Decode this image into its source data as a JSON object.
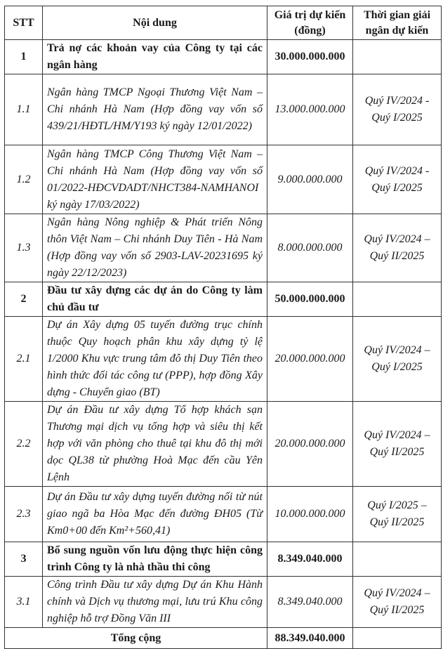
{
  "headers": {
    "stt": "STT",
    "content": "Nội dung",
    "value": "Giá trị dự kiến (đồng)",
    "time": "Thời gian giải ngân dự kiến"
  },
  "rows": [
    {
      "stt": "1",
      "content": "Trả nợ các khoản vay của Công ty tại các ngân hàng",
      "value": "30.000.000.000",
      "time": ""
    },
    {
      "stt": "1.1",
      "content": "Ngân hàng TMCP Ngoại Thương Việt Nam – Chi nhánh Hà Nam (Hợp đồng vay vốn số 439/21/HĐTL/HM/Y193 ký ngày 12/01/2022)",
      "value": "13.000.000.000",
      "time": "Quý IV/2024 - Quý I/2025"
    },
    {
      "stt": "1.2",
      "content": "Ngân hàng TMCP Công Thương Việt Nam – Chi nhánh Hà Nam (Hợp đồng vay vốn số 01/2022-HĐCVDADT/NHCT384-NAMHANOI ký ngày 17/03/2022)",
      "value": "9.000.000.000",
      "time": "Quý IV/2024 - Quý I/2025"
    },
    {
      "stt": "1.3",
      "content": "Ngân hàng Nông nghiệp & Phát triển Nông thôn Việt Nam – Chi nhánh Duy Tiên - Hà Nam (Hợp đồng vay vốn số 2903-LAV-20231695 ký ngày 22/12/2023)",
      "value": "8.000.000.000",
      "time": "Quý IV/2024 – Quý II/2025"
    },
    {
      "stt": "2",
      "content": "Đầu tư xây dựng các dự án do Công ty làm chủ đầu tư",
      "value": "50.000.000.000",
      "time": ""
    },
    {
      "stt": "2.1",
      "content": "Dự án Xây dựng 05 tuyến đường trục chính thuộc Quy hoạch phân khu xây dựng tỷ lệ 1/2000 Khu vực trung tâm đô thị Duy Tiên theo hình thức đối tác công tư (PPP), hợp đồng Xây dựng - Chuyển giao (BT)",
      "value": "20.000.000.000",
      "time": "Quý IV/2024 – Quý I/2025"
    },
    {
      "stt": "2.2",
      "content": "Dự án Đầu tư xây dựng Tổ hợp khách sạn Thương mại dịch vụ tổng hợp và siêu thị kết hợp với văn phòng cho thuê tại khu đô thị mới dọc QL38 từ phường Hoà Mạc đến cầu Yên Lệnh",
      "value": "20.000.000.000",
      "time": "Quý IV/2024 – Quý II/2025"
    },
    {
      "stt": "2.3",
      "content": "Dự án Đầu tư xây dựng tuyến đường nối từ nút giao ngã ba Hòa Mạc đến đường ĐH05 (Từ Km0+00 đến Km²+560,41)",
      "value": "10.000.000.000",
      "time": "Quý I/2025 – Quý II/2025"
    },
    {
      "stt": "3",
      "content": "Bổ sung nguồn vốn lưu động thực hiện công trình Công ty là nhà thầu thi công",
      "value": "8.349.040.000",
      "time": ""
    },
    {
      "stt": "3.1",
      "content": "Công trình Đầu tư xây dựng Dự án Khu Hành chính và Dịch vụ thương mại, lưu trú Khu công nghiệp hỗ trợ Đồng Văn III",
      "value": "8.349.040.000",
      "time": "Quý IV/2024 – Quý II/2025"
    }
  ],
  "total": {
    "label": "Tổng cộng",
    "value": "88.349.040.000"
  }
}
